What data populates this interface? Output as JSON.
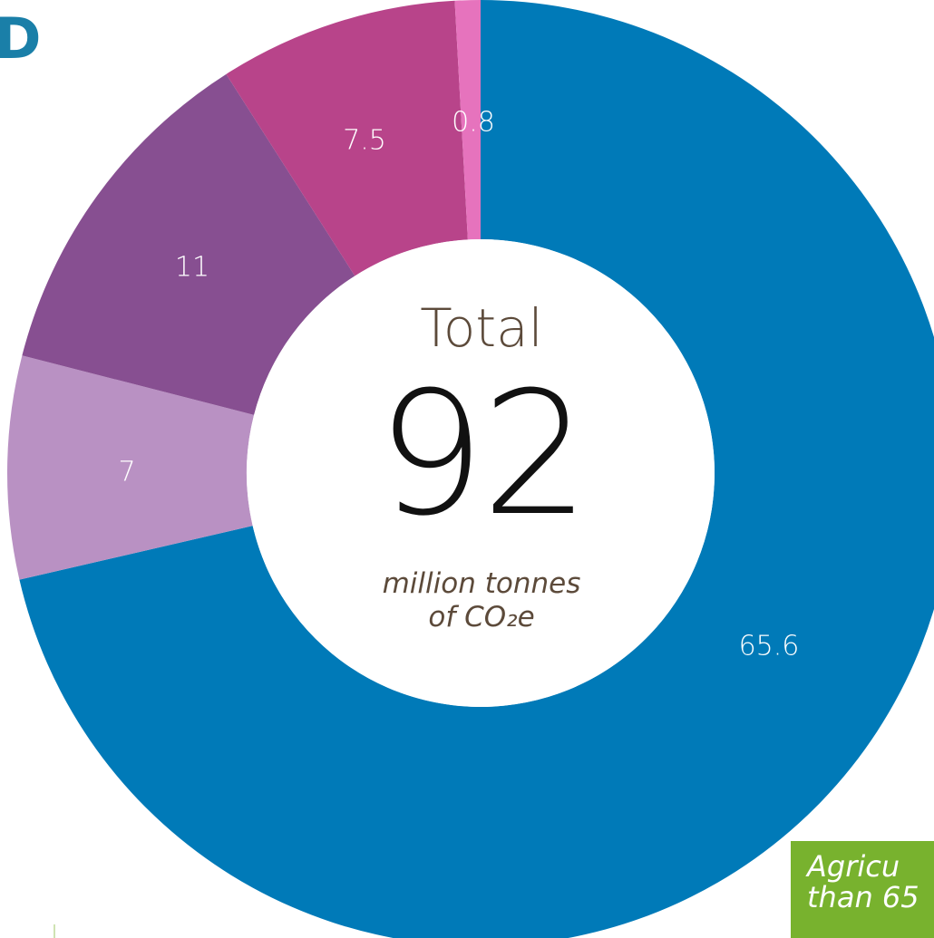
{
  "chart_data": {
    "type": "pie",
    "variant": "donut",
    "center": {
      "title": "Total",
      "total": "92",
      "unit_line1": "million tonnes",
      "unit_line2_prefix": "of ",
      "unit_line2_formula": "CO₂e"
    },
    "slices": [
      {
        "value": 65.6,
        "label": "65.6",
        "color": "#007ab8"
      },
      {
        "value": 7,
        "label": "7",
        "color": "#b991c3"
      },
      {
        "value": 11,
        "label": "11",
        "color": "#874f91"
      },
      {
        "value": 7.5,
        "label": "7.5",
        "color": "#b8448a"
      },
      {
        "value": 0.8,
        "label": "0.8",
        "color": "#e673bd"
      }
    ]
  },
  "page": {
    "corner_letter": "D",
    "callout_line1": "Agricu",
    "callout_line2": "than 65",
    "callout_color": "#78b22e"
  }
}
